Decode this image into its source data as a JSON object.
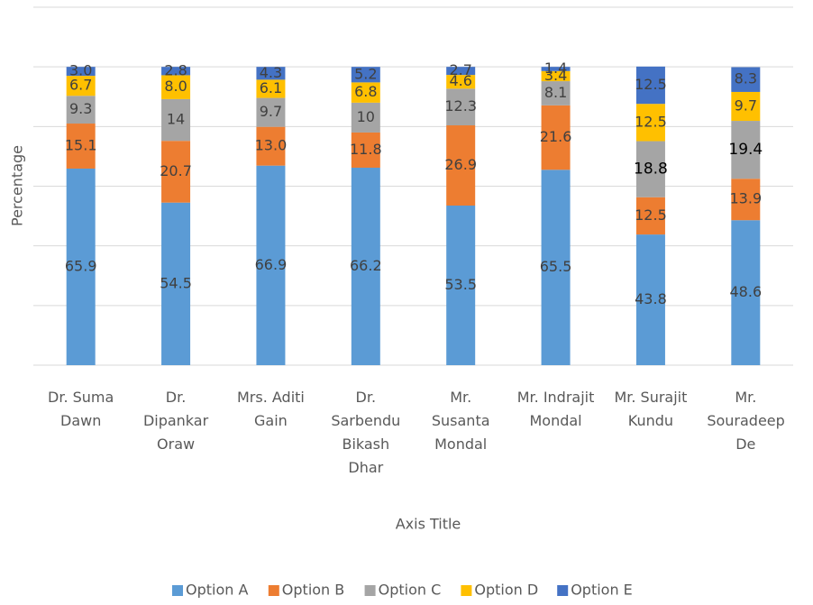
{
  "chart_data": {
    "type": "stacked_bar",
    "categories": [
      "Dr. Suma Dawn",
      "Dr. Dipankar Oraw",
      "Mrs. Aditi Gain",
      "Dr. Sarbendu Bikash Dhar",
      "Mr. Susanta Mondal",
      "Mr. Indrajit Mondal",
      "Mr. Surajit Kundu",
      "Mr. Souradeep De"
    ],
    "series": [
      {
        "name": "Option A",
        "color": "#5b9bd5",
        "values": [
          65.9,
          54.5,
          66.9,
          66.2,
          53.5,
          65.5,
          43.8,
          48.6
        ]
      },
      {
        "name": "Option B",
        "color": "#ed7d31",
        "values": [
          15.1,
          20.7,
          13.0,
          11.8,
          26.9,
          21.6,
          12.5,
          13.9
        ],
        "value_labels": [
          "15.1",
          "20.7",
          "13.0",
          "11.8",
          "26.9",
          "21.6",
          "12.5",
          "13.9"
        ]
      },
      {
        "name": "Option C",
        "color": "#a5a5a5",
        "values": [
          9.3,
          14.0,
          9.7,
          10.0,
          12.3,
          8.1,
          18.8,
          19.4
        ]
      },
      {
        "name": "Option D",
        "color": "#ffc000",
        "values": [
          6.7,
          8.0,
          6.1,
          6.8,
          4.6,
          3.4,
          12.5,
          9.7
        ],
        "value_labels": [
          "6.7",
          "8.0",
          "6.1",
          "6.8",
          "4.6",
          "3.4",
          "12.5",
          "9.7"
        ]
      },
      {
        "name": "Option E",
        "color": "#4472c4",
        "values": [
          3.0,
          2.8,
          4.3,
          5.2,
          2.7,
          1.4,
          12.5,
          8.3
        ],
        "value_labels": [
          "3.0",
          "2.8",
          "4.3",
          "5.2",
          "2.7",
          "1.4",
          "12.5",
          "8.3"
        ]
      }
    ],
    "x_label": "Axis Title",
    "y_label": "Percentage",
    "ylim": [
      0,
      120
    ],
    "yticks": [
      0,
      20,
      40,
      60,
      80,
      100,
      120
    ],
    "grid": true,
    "legend": "bottom"
  }
}
